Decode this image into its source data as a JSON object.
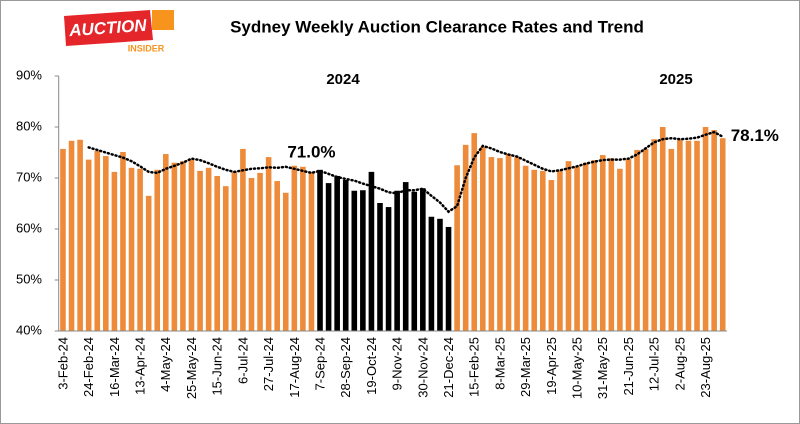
{
  "logo": {
    "name": "AUCTION",
    "tagline": "INSIDER"
  },
  "chart_data": {
    "type": "bar",
    "title": "Sydney Weekly Auction Clearance Rates and Trend",
    "annotations": [
      "2024",
      "2025"
    ],
    "categories": [
      "3-Feb-24",
      null,
      null,
      "24-Feb-24",
      null,
      null,
      "16-Mar-24",
      null,
      null,
      "13-Apr-24",
      null,
      null,
      "4-May-24",
      null,
      null,
      "25-May-24",
      null,
      null,
      "15-Jun-24",
      null,
      null,
      "6-Jul-24",
      null,
      null,
      "27-Jul-24",
      null,
      null,
      "17-Aug-24",
      null,
      null,
      "7-Sep-24",
      null,
      null,
      "28-Sep-24",
      null,
      null,
      "19-Oct-24",
      null,
      null,
      "9-Nov-24",
      null,
      null,
      "30-Nov-24",
      null,
      null,
      "21-Dec-24",
      null,
      null,
      "15-Feb-25",
      null,
      null,
      "8-Mar-25",
      null,
      null,
      "29-Mar-25",
      null,
      null,
      "19-Apr-25",
      null,
      null,
      "10-May-25",
      null,
      null,
      "31-May-25",
      null,
      null,
      "21-Jun-25",
      null,
      null,
      "12-Jul-25",
      null,
      null,
      "2-Aug-25",
      null,
      null,
      "23-Aug-25",
      null,
      null
    ],
    "values": [
      75.7,
      77.3,
      77.5,
      73.6,
      75.3,
      74.3,
      71.2,
      75.1,
      72.0,
      71.8,
      66.5,
      71.6,
      74.7,
      73.0,
      73.3,
      73.7,
      71.4,
      72.0,
      70.4,
      68.4,
      71.2,
      75.7,
      70.0,
      71.0,
      74.1,
      69.4,
      67.1,
      72.4,
      72.2,
      71.2,
      71.6,
      69.0,
      70.4,
      69.6,
      67.5,
      67.6,
      71.2,
      65.1,
      64.3,
      67.5,
      69.2,
      67.3,
      68.0,
      62.4,
      62.0,
      60.4,
      72.5,
      76.5,
      78.8,
      76.1,
      74.1,
      73.9,
      74.7,
      74.1,
      72.4,
      71.6,
      71.4,
      69.6,
      71.4,
      73.3,
      72.2,
      73.0,
      73.5,
      74.5,
      73.9,
      71.8,
      73.7,
      75.5,
      75.7,
      77.6,
      80.0,
      75.7,
      77.5,
      77.3,
      77.3,
      80.0,
      79.4,
      77.8
    ],
    "color": "#ed8b3b",
    "highlight": {
      "from": "7-Sep-24",
      "to": "21-Dec-24",
      "color": "#000000"
    },
    "trend": {
      "color": "#000000",
      "values": [
        null,
        null,
        null,
        76.0,
        75.5,
        75.0,
        74.5,
        74.0,
        73.3,
        72.3,
        71.2,
        71.0,
        71.8,
        72.4,
        73.0,
        73.8,
        73.5,
        72.9,
        72.2,
        71.6,
        71.2,
        71.5,
        71.8,
        71.9,
        72.1,
        72.0,
        72.2,
        71.8,
        71.4,
        71.0,
        71.4,
        70.8,
        70.2,
        69.8,
        69.5,
        68.9,
        68.4,
        67.9,
        67.2,
        67.0,
        67.6,
        67.6,
        67.9,
        66.5,
        65.2,
        63.4,
        64.5,
        70.0,
        74.0,
        76.3,
        75.8,
        75.1,
        74.6,
        74.2,
        73.4,
        72.6,
        71.8,
        71.3,
        71.5,
        71.9,
        72.3,
        72.8,
        73.2,
        73.5,
        73.6,
        73.6,
        73.8,
        74.6,
        75.8,
        77.0,
        77.6,
        77.8,
        77.6,
        77.7,
        77.9,
        78.5,
        79.0,
        78.1
      ],
      "value_labels": [
        null,
        null,
        null,
        null,
        null,
        null,
        null,
        null,
        null,
        null,
        null,
        null,
        null,
        null,
        null,
        null,
        null,
        null,
        null,
        null,
        null,
        null,
        null,
        null,
        null,
        null,
        null,
        null,
        null,
        "71.0%",
        null,
        null,
        null,
        null,
        null,
        null,
        null,
        null,
        null,
        null,
        null,
        null,
        null,
        null,
        null,
        null,
        null,
        null,
        null,
        null,
        null,
        null,
        null,
        null,
        null,
        null,
        null,
        null,
        null,
        null,
        null,
        null,
        null,
        null,
        null,
        null,
        null,
        null,
        null,
        null,
        null,
        null,
        null,
        null,
        null,
        null,
        null,
        "78.1%"
      ]
    },
    "ylim": [
      40,
      90
    ],
    "yticks": [
      {
        "value": 40,
        "label": "40%"
      },
      {
        "value": 50,
        "label": "50%"
      },
      {
        "value": 60,
        "label": "60%"
      },
      {
        "value": 70,
        "label": "70%"
      },
      {
        "value": 80,
        "label": "80%"
      },
      {
        "value": 90,
        "label": "90%"
      }
    ],
    "grid": false
  }
}
